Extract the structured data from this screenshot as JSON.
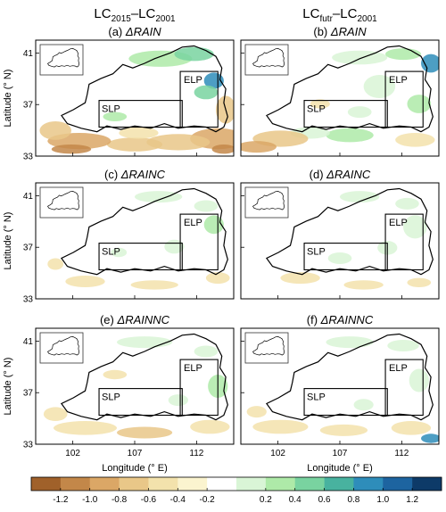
{
  "figure": {
    "col_headers": [
      {
        "base": "LC",
        "sub1": "2015",
        "mid": "–LC",
        "sub2": "2001"
      },
      {
        "base": "LC",
        "sub1": "futr",
        "mid": "–LC",
        "sub2": "2001"
      }
    ],
    "ylabel": "Latitude (° N)",
    "xlabel": "Longitude (° E)",
    "region_labels": {
      "elp": "ELP",
      "slp": "SLP"
    },
    "colors": {
      "scale": [
        "#a0612a",
        "#c38749",
        "#dba766",
        "#e9c788",
        "#f3e2ac",
        "#fbf4cf",
        "#ffffff",
        "#d9f5d6",
        "#aeeaa8",
        "#79d3a0",
        "#48b29f",
        "#2e8dba",
        "#1d64a0",
        "#0d3a68"
      ],
      "frame": "#000000"
    }
  },
  "chart_data": [
    {
      "type": "heatmap",
      "panel": "(a)",
      "variable": "ΔRAIN",
      "xticks": [
        102,
        107,
        112
      ],
      "yticks": [
        33,
        37,
        41
      ],
      "xlim": [
        99,
        115
      ],
      "ylim": [
        33,
        42
      ],
      "legend_placement": "bottom"
    },
    {
      "type": "heatmap",
      "panel": "(b)",
      "variable": "ΔRAIN",
      "xticks": [
        102,
        107,
        112
      ],
      "yticks": [
        33,
        37,
        41
      ],
      "xlim": [
        99,
        115
      ],
      "ylim": [
        33,
        42
      ],
      "legend_placement": "bottom"
    },
    {
      "type": "heatmap",
      "panel": "(c)",
      "variable": "ΔRAINC",
      "xticks": [
        102,
        107,
        112
      ],
      "yticks": [
        33,
        37,
        41
      ],
      "xlim": [
        99,
        115
      ],
      "ylim": [
        33,
        42
      ],
      "legend_placement": "bottom"
    },
    {
      "type": "heatmap",
      "panel": "(d)",
      "variable": "ΔRAINC",
      "xticks": [
        102,
        107,
        112
      ],
      "yticks": [
        33,
        37,
        41
      ],
      "xlim": [
        99,
        115
      ],
      "ylim": [
        33,
        42
      ],
      "legend_placement": "bottom"
    },
    {
      "type": "heatmap",
      "panel": "(e)",
      "variable": "ΔRAINNC",
      "xticks": [
        102,
        107,
        112
      ],
      "yticks": [
        33,
        37,
        41
      ],
      "xlim": [
        99,
        115
      ],
      "ylim": [
        33,
        42
      ],
      "legend_placement": "bottom"
    },
    {
      "type": "heatmap",
      "panel": "(f)",
      "variable": "ΔRAINNC",
      "xticks": [
        102,
        107,
        112
      ],
      "yticks": [
        33,
        37,
        41
      ],
      "xlim": [
        99,
        115
      ],
      "ylim": [
        33,
        42
      ],
      "legend_placement": "bottom"
    }
  ],
  "colorbar": {
    "ticks": [
      "-1.2",
      "-1.0",
      "-0.8",
      "-0.6",
      "-0.4",
      "-0.2",
      "0.2",
      "0.4",
      "0.6",
      "0.8",
      "1.0",
      "1.2"
    ]
  }
}
